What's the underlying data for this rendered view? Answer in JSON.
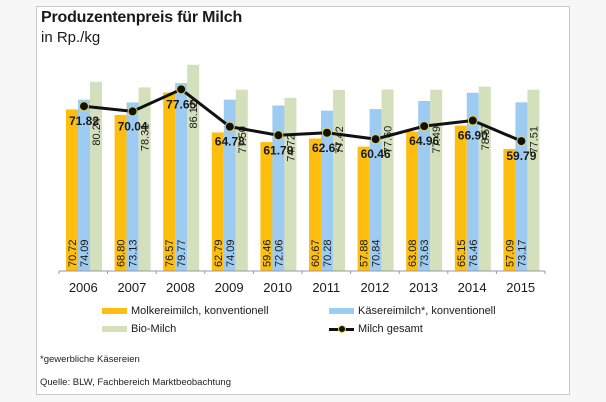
{
  "chart_data": {
    "type": "bar",
    "title": "Produzentenpreis für Milch",
    "subtitle": "in Rp./kg",
    "xlabel": "",
    "ylabel": "Rp./kg",
    "ylim": [
      15,
      90
    ],
    "grid": false,
    "legend_position": "bottom",
    "categories": [
      "2006",
      "2007",
      "2008",
      "2009",
      "2010",
      "2011",
      "2012",
      "2013",
      "2014",
      "2015"
    ],
    "series": [
      {
        "name": "Molkereimilch, konventionell",
        "type": "bar",
        "color": "#FDBE10",
        "values": [
          70.72,
          68.8,
          76.57,
          62.79,
          59.46,
          60.67,
          57.88,
          63.08,
          65.15,
          57.09
        ],
        "labels": [
          "70.72",
          "68.80",
          "76.57",
          "62.79",
          "59.46",
          "60.67",
          "57.88",
          "63.08",
          "65.15",
          "57.09"
        ]
      },
      {
        "name": "Käsereimilch*, konventionell",
        "type": "bar",
        "color": "#9DCBF2",
        "values": [
          74.09,
          73.13,
          79.77,
          74.09,
          72.06,
          70.28,
          70.84,
          73.63,
          76.46,
          73.17
        ],
        "labels": [
          "74.09",
          "73.13",
          "79.77",
          "74.09",
          "72.06",
          "70.28",
          "70.84",
          "73.63",
          "76.46",
          "73.17"
        ]
      },
      {
        "name": "Bio-Milch",
        "type": "bar",
        "color": "#D4E0BC",
        "values": [
          80.24,
          78.31,
          86.12,
          77.5,
          74.72,
          77.42,
          77.6,
          77.49,
          78.57,
          77.51
        ],
        "labels": [
          "80.24",
          "78.31",
          "86.12",
          "77.50",
          "74.72",
          "77.42",
          "77.60",
          "77.49",
          "78.57",
          "77.51"
        ]
      },
      {
        "name": "Milch gesamt",
        "type": "line",
        "color": "#111111",
        "marker_edge": "#E6D44A",
        "values": [
          71.82,
          70.04,
          77.65,
          64.78,
          61.79,
          62.67,
          60.46,
          64.96,
          66.9,
          59.79
        ],
        "labels": [
          "71.82",
          "70.04",
          "77.65",
          "64.78",
          "61.79",
          "62.67",
          "60.46",
          "64.96",
          "66.90",
          "59.79"
        ]
      }
    ]
  },
  "legend": {
    "items": [
      {
        "label": "Molkereimilch, konventionell",
        "color": "#FDBE10"
      },
      {
        "label": "Käsereimilch*, konventionell",
        "color": "#9DCBF2"
      },
      {
        "label": "Bio-Milch",
        "color": "#D4E0BC"
      },
      {
        "label": "Milch gesamt",
        "color": "#111111"
      }
    ]
  },
  "footnote": "*gewerbliche Käsereien",
  "source": "Quelle: BLW, Fachbereich Marktbeobachtung"
}
